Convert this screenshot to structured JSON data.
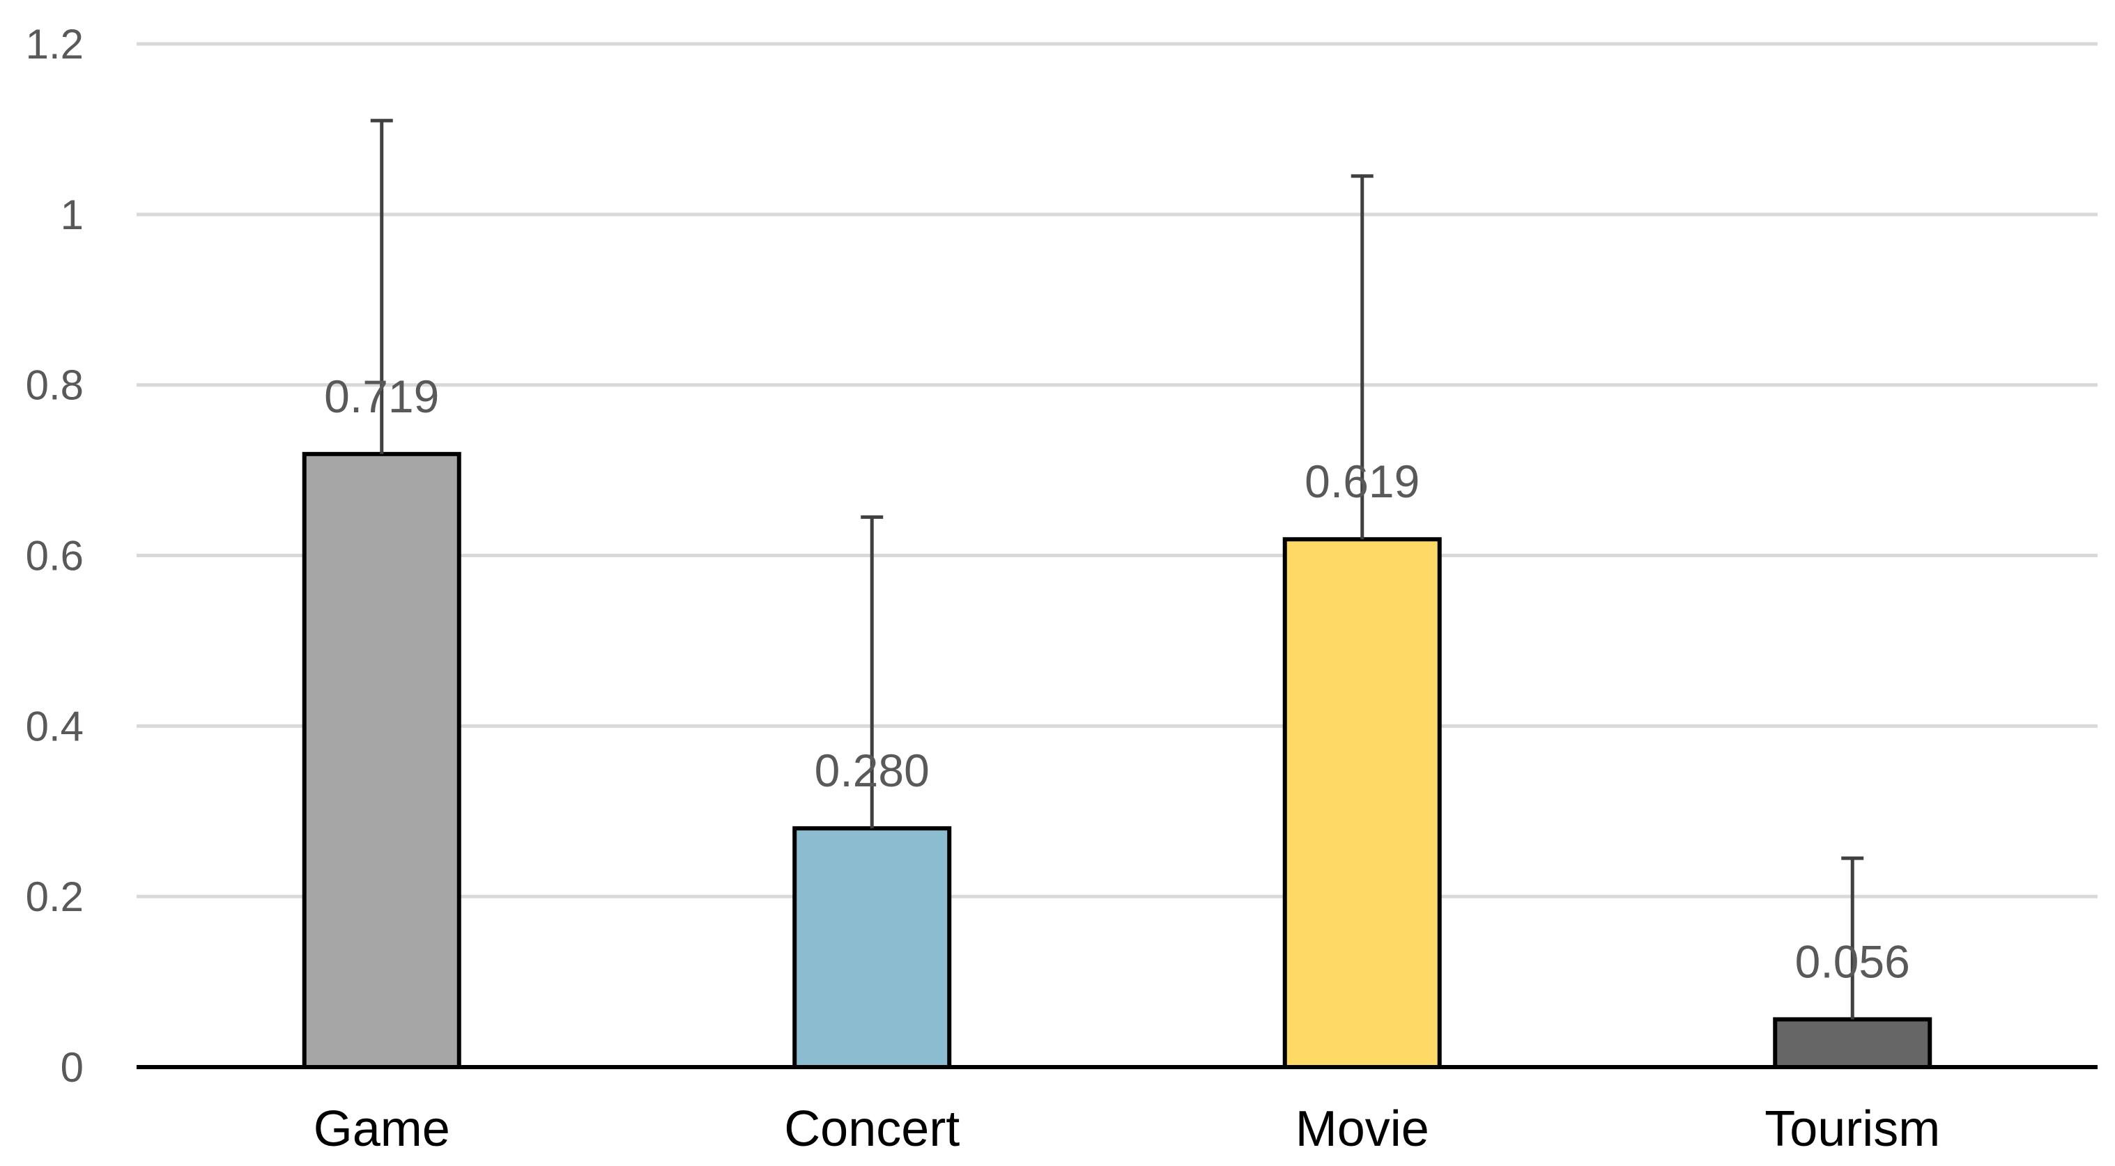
{
  "chart_data": {
    "type": "bar",
    "title": "",
    "xlabel": "",
    "ylabel": "",
    "ylim": [
      0,
      1.2
    ],
    "yticks": [
      "0",
      "0.2",
      "0.4",
      "0.6",
      "0.8",
      "1",
      "1.2"
    ],
    "grid": true,
    "legend": "none",
    "categories": [
      "Game",
      "Concert",
      "Movie",
      "Tourism"
    ],
    "values": [
      0.719,
      0.28,
      0.619,
      0.056
    ],
    "value_labels": [
      "0.719",
      "0.280",
      "0.619",
      "0.056"
    ],
    "error_upper": [
      1.11,
      0.645,
      1.045,
      0.245
    ],
    "colors": [
      "#a6a6a6",
      "#8bbcd0",
      "#ffd966",
      "#666666"
    ]
  }
}
